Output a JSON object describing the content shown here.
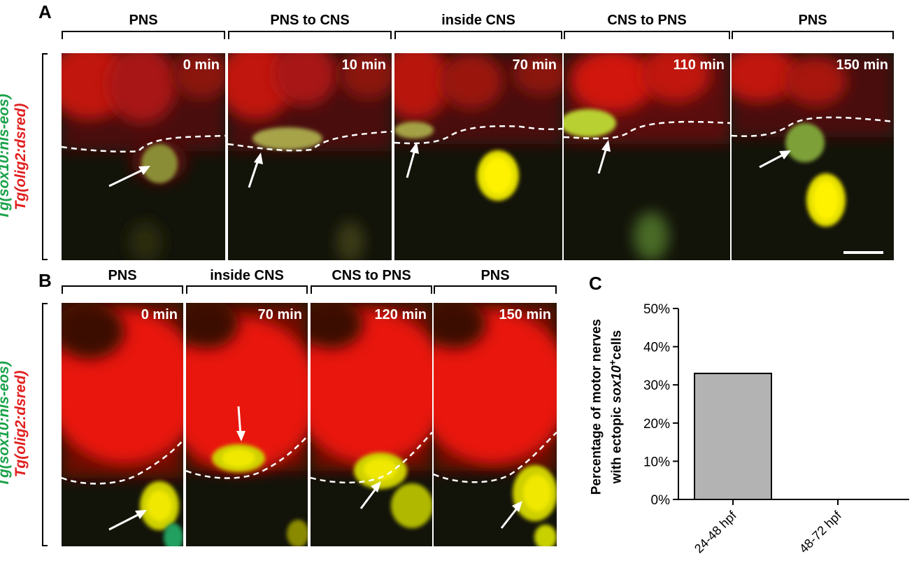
{
  "panels": {
    "a": {
      "letter": "A",
      "stages": [
        "PNS",
        "PNS to CNS",
        "inside CNS",
        "CNS to PNS",
        "PNS"
      ],
      "times": [
        "0 min",
        "10 min",
        "70 min",
        "110 min",
        "150 min"
      ]
    },
    "b": {
      "letter": "B",
      "stages": [
        "PNS",
        "inside CNS",
        "CNS to PNS",
        "PNS"
      ],
      "times": [
        "0 min",
        "70 min",
        "120 min",
        "150 min"
      ]
    },
    "c": {
      "letter": "C"
    }
  },
  "side_label": {
    "line1": "Tg(sox10:nls-eos)",
    "line2": "Tg(olig2:dsred)",
    "color1": "#1aa24a",
    "color2": "#e0201f"
  },
  "chart_data": {
    "type": "bar",
    "categories": [
      "24-48 hpf",
      "48-72 hpf"
    ],
    "values": [
      33,
      0
    ],
    "ylabel_line1": "Percentage of motor nerves",
    "ylabel_line2_pre": "with ectopic ",
    "ylabel_line2_ital": "sox10",
    "ylabel_line2_sup": "+",
    "ylabel_line2_post": "cells",
    "ylim": [
      0,
      50
    ],
    "yticks": [
      "0%",
      "10%",
      "20%",
      "30%",
      "40%",
      "50%"
    ],
    "bar_color": "#b3b3b3"
  }
}
